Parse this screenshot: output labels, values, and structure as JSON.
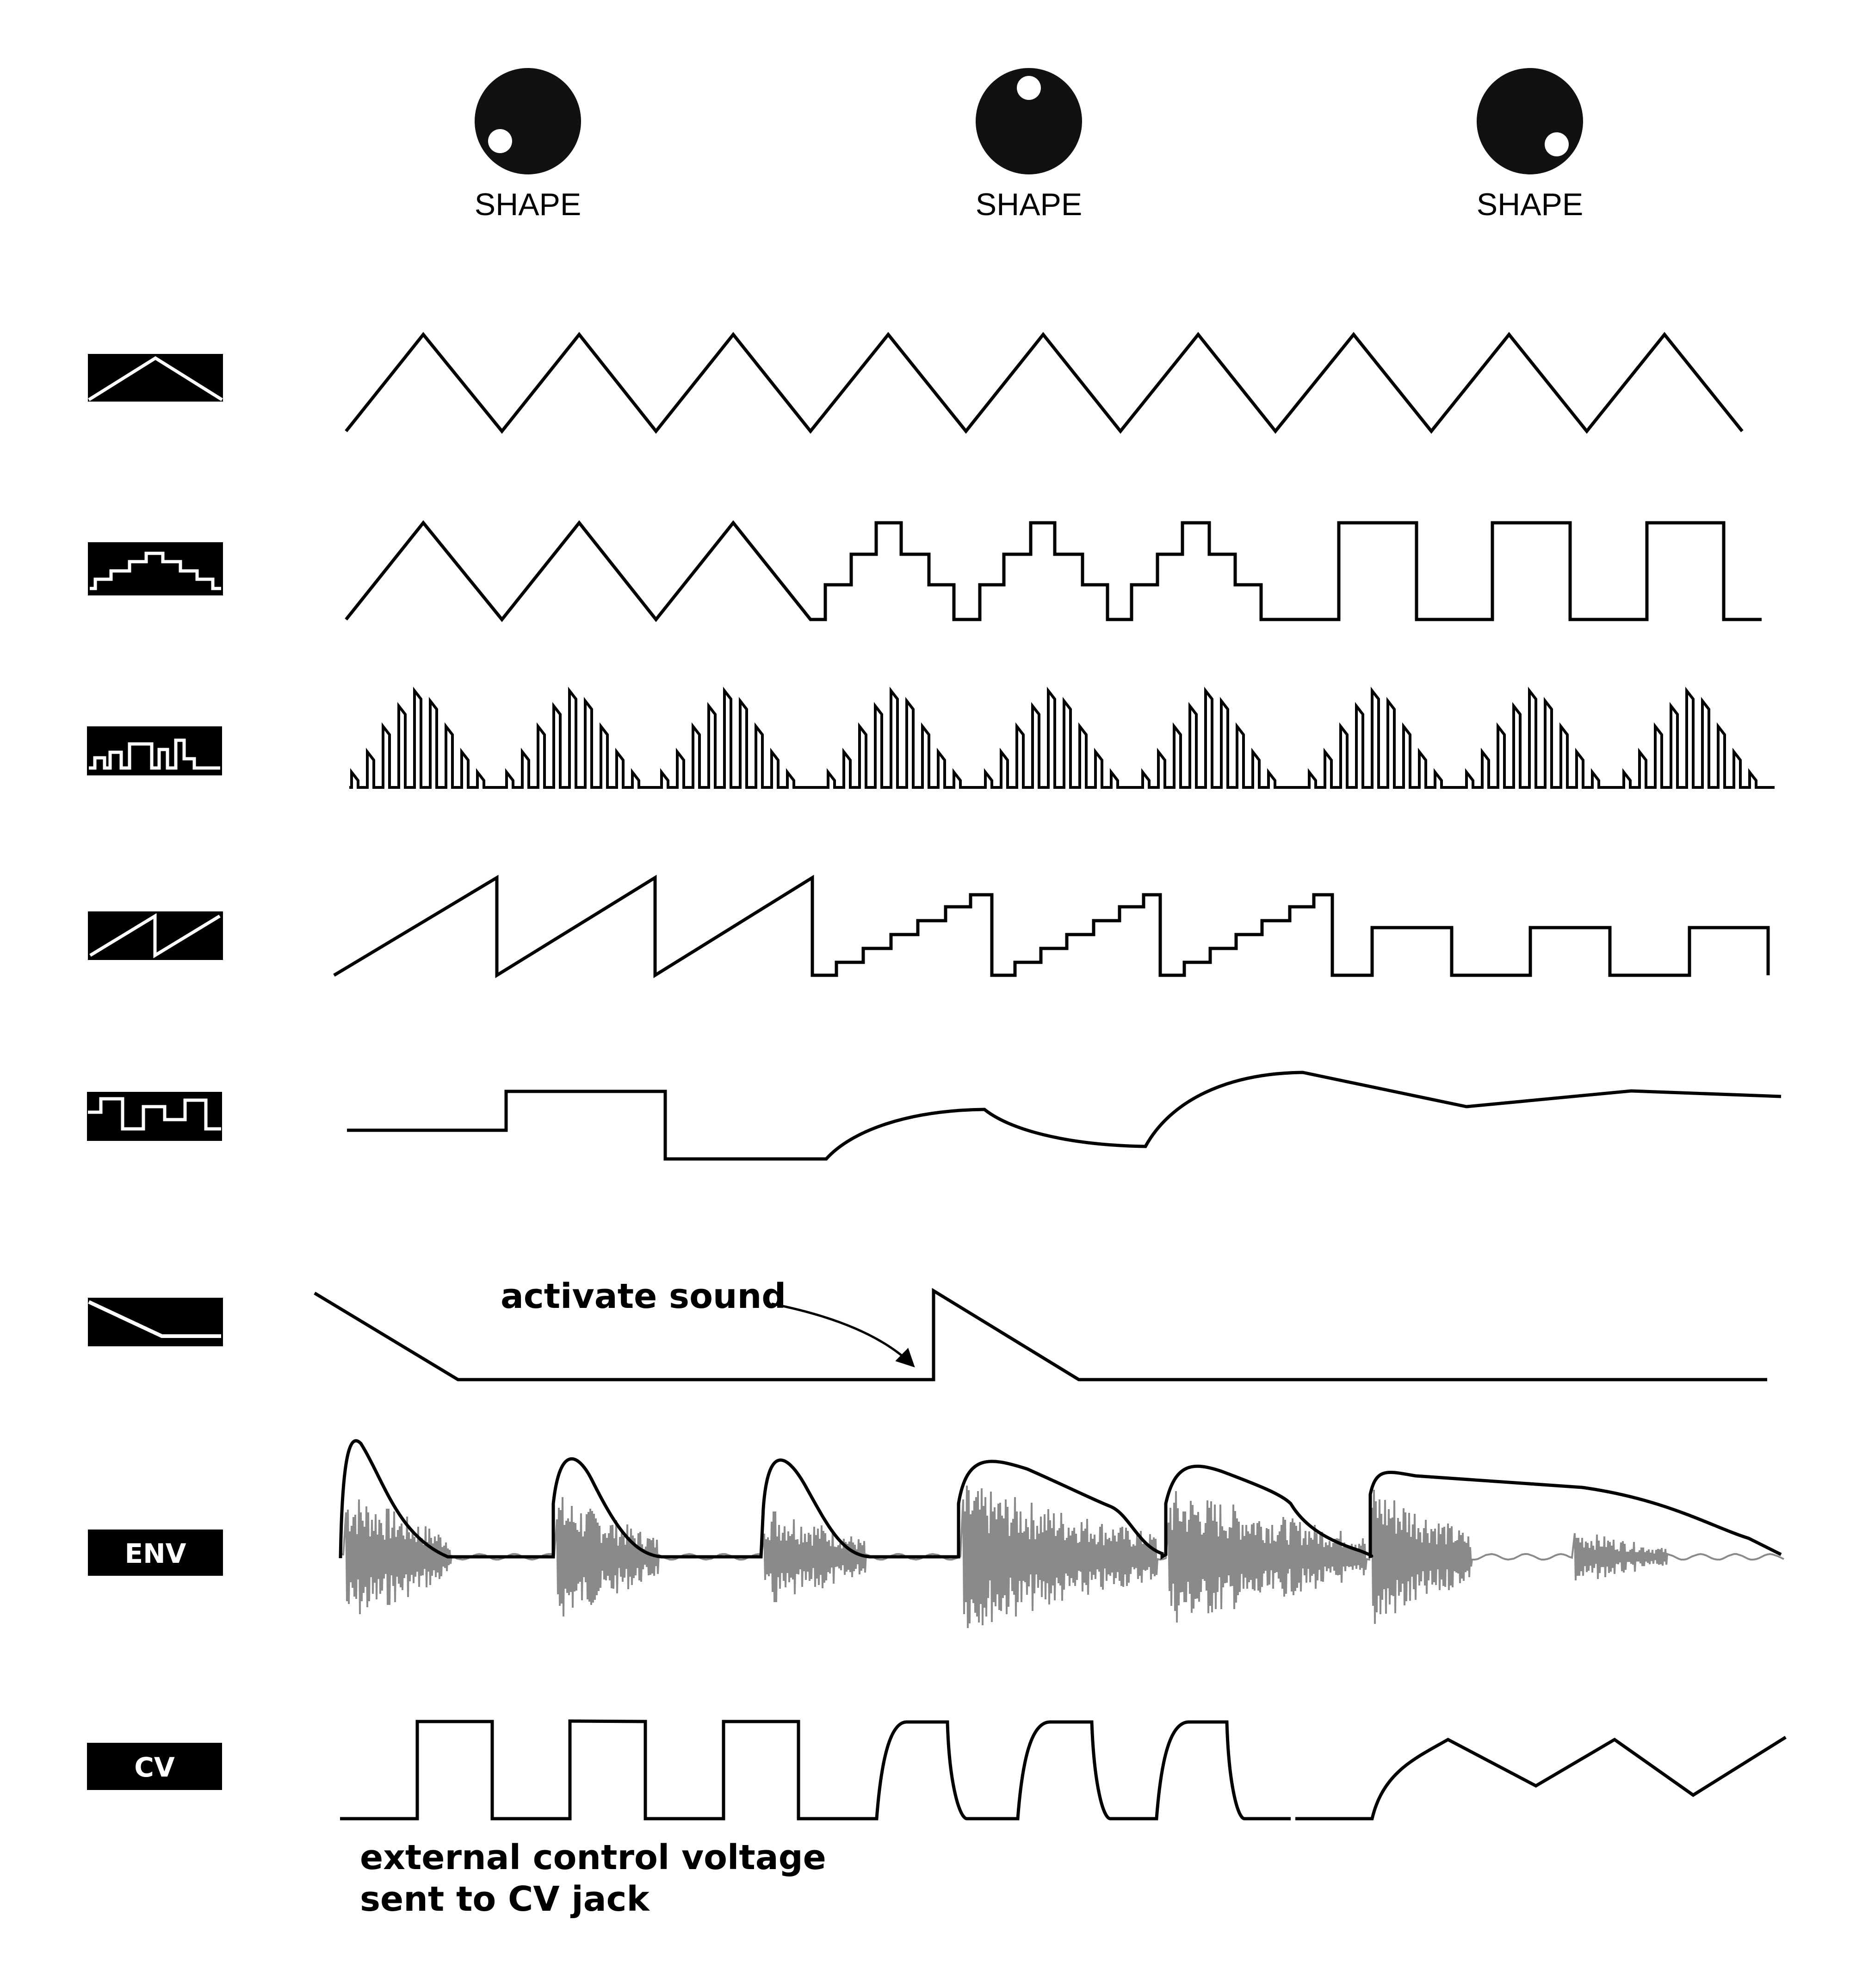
{
  "knobs": [
    {
      "label": "SHAPE",
      "position": "min"
    },
    {
      "label": "SHAPE",
      "position": "center"
    },
    {
      "label": "SHAPE",
      "position": "max"
    }
  ],
  "rows": [
    {
      "mode": "triangle-icon"
    },
    {
      "mode": "stepped-triangle-icon"
    },
    {
      "mode": "pulse-burst-icon"
    },
    {
      "mode": "sawtooth-icon"
    },
    {
      "mode": "random-step-icon"
    },
    {
      "mode": "decay-ramp-icon"
    },
    {
      "mode": "envelope",
      "badge": "ENV"
    },
    {
      "mode": "control-voltage",
      "badge": "CV"
    }
  ],
  "annotations": {
    "activate_sound": "activate sound",
    "external_cv_line1": "external control voltage",
    "external_cv_line2": "sent to CV jack"
  },
  "colors": {
    "ink": "#000000",
    "audio": "#8a8a8a",
    "background": "#ffffff"
  }
}
